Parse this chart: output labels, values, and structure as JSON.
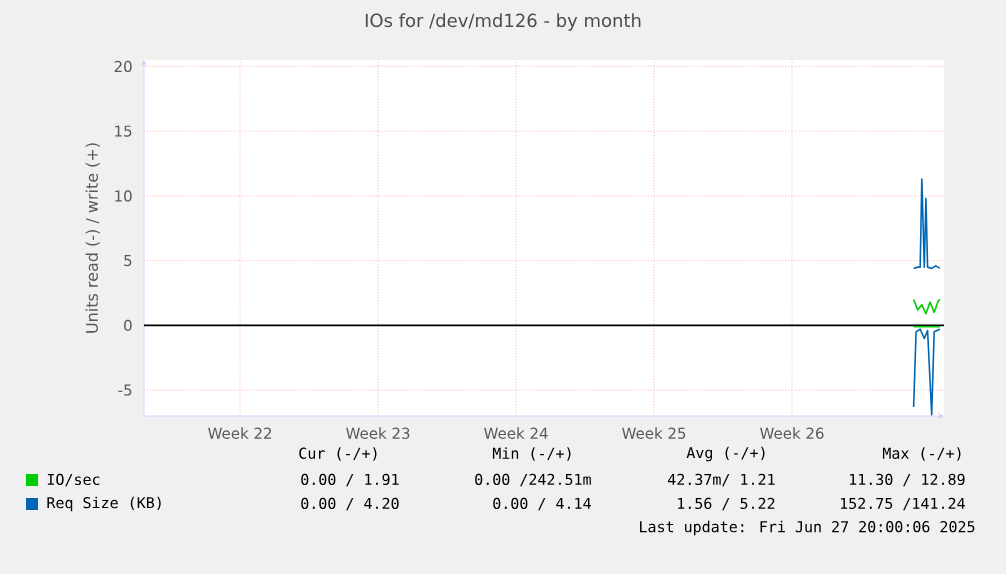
{
  "chart_data": {
    "type": "line",
    "title": "IOs for /dev/md126 - by month",
    "ylabel": "Units read (-) / write (+)",
    "xlim": [
      "2025-05-18T11:00",
      "2025-06-28T01:00"
    ],
    "ylim": [
      -7,
      20.5
    ],
    "xticks": [
      {
        "value": "2025-05-23T08:00",
        "label": "Week 22"
      },
      {
        "value": "2025-05-30T08:00",
        "label": "Week 23"
      },
      {
        "value": "2025-06-06T08:00",
        "label": "Week 24"
      },
      {
        "value": "2025-06-13T08:00",
        "label": "Week 25"
      },
      {
        "value": "2025-06-20T08:00",
        "label": "Week 26"
      }
    ],
    "yticks": [
      -5,
      0,
      5,
      10,
      15,
      20
    ],
    "grid": true,
    "legend": "bottom",
    "ref_lines": [
      {
        "axis": "y",
        "value": 0,
        "color": "#000000"
      }
    ],
    "series": [
      {
        "name": "IO/sec",
        "color": "#00cc00",
        "x": [
          "2025-06-26T12:00",
          "2025-06-26T17:00",
          "2025-06-26T22:00",
          "2025-06-27T03:00",
          "2025-06-27T08:00",
          "2025-06-27T13:00",
          "2025-06-27T18:00",
          "2025-06-27T20:00"
        ],
        "values": [
          2.0,
          1.2,
          1.6,
          0.9,
          1.8,
          1.0,
          1.9,
          2.0
        ]
      },
      {
        "color": "#00cc00",
        "x": [
          "2025-06-26T12:00",
          "2025-06-27T20:00"
        ],
        "values": [
          -0.1,
          -0.1
        ]
      },
      {
        "name": "Req Size (KB)",
        "color": "#0066b3",
        "x": [
          "2025-06-26T12:00",
          "2025-06-26T17:00",
          "2025-06-26T20:00",
          "2025-06-26T22:00",
          "2025-06-27T01:00",
          "2025-06-27T03:00",
          "2025-06-27T05:00",
          "2025-06-27T10:00",
          "2025-06-27T15:00",
          "2025-06-27T20:00"
        ],
        "values": [
          4.4,
          4.5,
          4.5,
          11.3,
          4.5,
          9.8,
          4.5,
          4.4,
          4.6,
          4.4
        ]
      },
      {
        "color": "#0066b3",
        "x": [
          "2025-06-26T12:00",
          "2025-06-26T15:00",
          "2025-06-26T20:00",
          "2025-06-27T01:00",
          "2025-06-27T05:00",
          "2025-06-27T10:00",
          "2025-06-27T13:00",
          "2025-06-27T20:00"
        ],
        "values": [
          -6.3,
          -0.5,
          -0.3,
          -1.0,
          -0.4,
          -6.9,
          -0.5,
          -0.3
        ]
      }
    ],
    "annotations": [
      "Cur (-/+)",
      "Min (-/+)",
      "Avg (-/+)",
      "Max (-/+)",
      "0.00 /  1.91",
      "0.00 /242.51m",
      "42.37m/  1.21",
      "11.30 / 12.89",
      "0.00 /  4.20",
      "0.00 /  4.14",
      "1.56 /  5.22",
      "152.75 /141.24",
      "Last update: Fri Jun 27 20:00:06 2025"
    ]
  }
}
